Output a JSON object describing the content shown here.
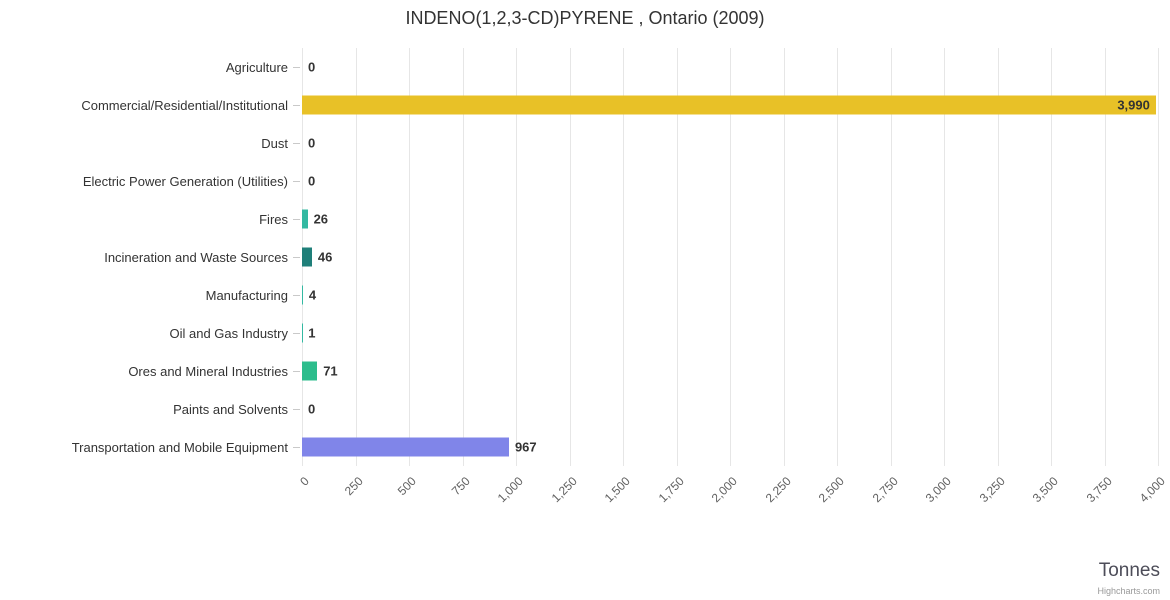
{
  "chart_data": {
    "type": "bar",
    "orientation": "horizontal",
    "title": "INDENO(1,2,3-CD)PYRENE , Ontario (2009)",
    "xlabel": "Tonnes",
    "categories": [
      "Agriculture",
      "Commercial/Residential/Institutional",
      "Dust",
      "Electric Power Generation (Utilities)",
      "Fires",
      "Incineration and Waste Sources",
      "Manufacturing",
      "Oil and Gas Industry",
      "Ores and Mineral Industries",
      "Paints and Solvents",
      "Transportation and Mobile Equipment"
    ],
    "values": [
      0,
      3990,
      0,
      0,
      26,
      46,
      4,
      1,
      71,
      0,
      967
    ],
    "value_labels": [
      "0",
      "3,990",
      "0",
      "0",
      "26",
      "46",
      "4",
      "1",
      "71",
      "0",
      "967"
    ],
    "bar_colors": [
      "#7cb5ec",
      "#e8c127",
      "#7cb5ec",
      "#7cb5ec",
      "#33b9a2",
      "#1f7f79",
      "#33b9a2",
      "#33b9a2",
      "#2cbd8c",
      "#7cb5ec",
      "#8085e9"
    ],
    "xlim": [
      0,
      4000
    ],
    "x_ticks": [
      0,
      250,
      500,
      750,
      1000,
      1250,
      1500,
      1750,
      2000,
      2250,
      2500,
      2750,
      3000,
      3250,
      3500,
      3750,
      4000
    ],
    "x_tick_labels": [
      "0",
      "250",
      "500",
      "750",
      "1,000",
      "1,250",
      "1,500",
      "1,750",
      "2,000",
      "2,250",
      "2,500",
      "2,750",
      "3,000",
      "3,250",
      "3,500",
      "3,750",
      "4,000"
    ],
    "grid": true,
    "legend": false
  },
  "credit": "Highcharts.com",
  "colors": {
    "grid": "#e6e6e6",
    "value_label": "#333333",
    "axis_label": "#606060",
    "title": "#333333"
  }
}
